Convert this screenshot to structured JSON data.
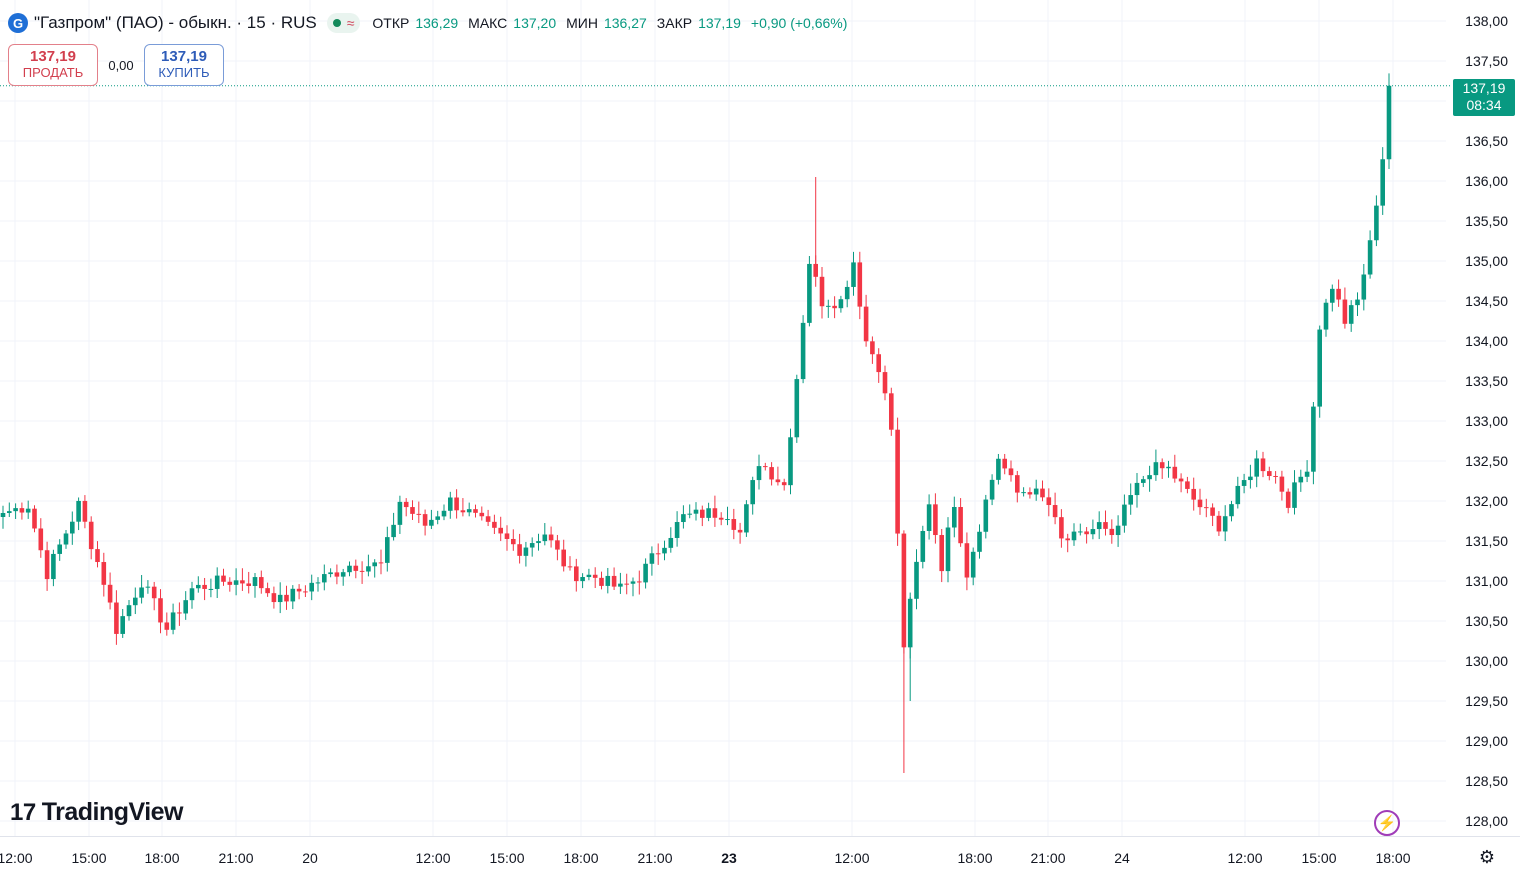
{
  "header": {
    "logo_letter": "G",
    "title": "\"Газпром\" (ПАО) - обыкн. · 15 · RUS",
    "status_wave": "≈",
    "ohlc": [
      {
        "label": "ОТКР",
        "value": "136,29"
      },
      {
        "label": "МАКС",
        "value": "137,20"
      },
      {
        "label": "МИН",
        "value": "136,27"
      },
      {
        "label": "ЗАКР",
        "value": "137,19"
      }
    ],
    "change": "+0,90 (+0,66%)"
  },
  "trade": {
    "sell_price": "137,19",
    "sell_label": "ПРОДАТЬ",
    "spread": "0,00",
    "buy_price": "137,19",
    "buy_label": "КУПИТЬ"
  },
  "last_price": {
    "price": "137,19",
    "countdown": "08:34"
  },
  "brand": {
    "name": "TradingView",
    "mark": "17"
  },
  "colors": {
    "up": "#089981",
    "down": "#f23645",
    "grid": "#f0f3fa",
    "accent": "#a03cb8"
  },
  "chart_data": {
    "type": "candlestick",
    "y_ticks": [
      "138,00",
      "137,50",
      "137,00",
      "136,50",
      "136,00",
      "135,50",
      "135,00",
      "134,50",
      "134,00",
      "133,50",
      "133,00",
      "132,50",
      "132,00",
      "131,50",
      "131,00",
      "130,50",
      "130,00",
      "129,50",
      "129,00",
      "128,50",
      "128,00"
    ],
    "ylim": [
      127.8,
      138.2
    ],
    "x_ticks": [
      {
        "label": "12:00",
        "bold": false
      },
      {
        "label": "15:00",
        "bold": false
      },
      {
        "label": "18:00",
        "bold": false
      },
      {
        "label": "21:00",
        "bold": false
      },
      {
        "label": "20",
        "bold": false
      },
      {
        "label": "12:00",
        "bold": false
      },
      {
        "label": "15:00",
        "bold": false
      },
      {
        "label": "18:00",
        "bold": false
      },
      {
        "label": "21:00",
        "bold": false
      },
      {
        "label": "23",
        "bold": true
      },
      {
        "label": "12:00",
        "bold": false
      },
      {
        "label": "18:00",
        "bold": false
      },
      {
        "label": "21:00",
        "bold": false
      },
      {
        "label": "24",
        "bold": false
      },
      {
        "label": "12:00",
        "bold": false
      },
      {
        "label": "15:00",
        "bold": false
      },
      {
        "label": "18:00",
        "bold": false
      }
    ],
    "last_price": 137.19,
    "keypoints": [
      {
        "i": 0,
        "p": 131.85
      },
      {
        "i": 4,
        "p": 131.95
      },
      {
        "i": 7,
        "p": 131.1
      },
      {
        "i": 12,
        "p": 131.95
      },
      {
        "i": 16,
        "p": 131.0
      },
      {
        "i": 18,
        "p": 130.4
      },
      {
        "i": 22,
        "p": 131.0
      },
      {
        "i": 26,
        "p": 130.4
      },
      {
        "i": 30,
        "p": 130.9
      },
      {
        "i": 35,
        "p": 131.0
      },
      {
        "i": 40,
        "p": 131.0
      },
      {
        "i": 44,
        "p": 130.75
      },
      {
        "i": 50,
        "p": 131.0
      },
      {
        "i": 55,
        "p": 131.2
      },
      {
        "i": 60,
        "p": 131.2
      },
      {
        "i": 63,
        "p": 132.0
      },
      {
        "i": 67,
        "p": 131.7
      },
      {
        "i": 71,
        "p": 132.0
      },
      {
        "i": 74,
        "p": 131.85
      },
      {
        "i": 78,
        "p": 131.6
      },
      {
        "i": 82,
        "p": 131.4
      },
      {
        "i": 86,
        "p": 131.6
      },
      {
        "i": 90,
        "p": 131.1
      },
      {
        "i": 94,
        "p": 131.05
      },
      {
        "i": 98,
        "p": 130.9
      },
      {
        "i": 101,
        "p": 131.05
      },
      {
        "i": 105,
        "p": 131.5
      },
      {
        "i": 108,
        "p": 131.8
      },
      {
        "i": 112,
        "p": 131.85
      },
      {
        "i": 115,
        "p": 131.85
      },
      {
        "i": 117,
        "p": 131.6
      },
      {
        "i": 120,
        "p": 132.5
      },
      {
        "i": 124,
        "p": 132.2
      },
      {
        "i": 126,
        "p": 133.55
      },
      {
        "i": 128,
        "p": 135.0
      },
      {
        "i": 130,
        "p": 134.5
      },
      {
        "i": 133,
        "p": 134.5
      },
      {
        "i": 135,
        "p": 135.0
      },
      {
        "i": 137,
        "p": 134.0
      },
      {
        "i": 139,
        "p": 133.7
      },
      {
        "i": 141,
        "p": 132.9
      },
      {
        "i": 143,
        "p": 130.2
      },
      {
        "i": 145,
        "p": 131.2
      },
      {
        "i": 147,
        "p": 132.0
      },
      {
        "i": 149,
        "p": 131.2
      },
      {
        "i": 151,
        "p": 132.0
      },
      {
        "i": 153,
        "p": 131.1
      },
      {
        "i": 156,
        "p": 132.0
      },
      {
        "i": 158,
        "p": 132.55
      },
      {
        "i": 161,
        "p": 132.1
      },
      {
        "i": 163,
        "p": 132.15
      },
      {
        "i": 166,
        "p": 131.95
      },
      {
        "i": 168,
        "p": 131.5
      },
      {
        "i": 171,
        "p": 131.55
      },
      {
        "i": 174,
        "p": 131.7
      },
      {
        "i": 176,
        "p": 131.5
      },
      {
        "i": 179,
        "p": 132.05
      },
      {
        "i": 182,
        "p": 132.4
      },
      {
        "i": 185,
        "p": 132.4
      },
      {
        "i": 188,
        "p": 132.1
      },
      {
        "i": 191,
        "p": 131.85
      },
      {
        "i": 193,
        "p": 131.7
      },
      {
        "i": 196,
        "p": 132.1
      },
      {
        "i": 199,
        "p": 132.5
      },
      {
        "i": 202,
        "p": 132.3
      },
      {
        "i": 204,
        "p": 132.0
      },
      {
        "i": 207,
        "p": 132.45
      },
      {
        "i": 208,
        "p": 133.2
      },
      {
        "i": 209,
        "p": 134.2
      },
      {
        "i": 211,
        "p": 134.7
      },
      {
        "i": 213,
        "p": 134.25
      },
      {
        "i": 215,
        "p": 134.5
      },
      {
        "i": 217,
        "p": 135.2
      },
      {
        "i": 219,
        "p": 136.3
      },
      {
        "i": 220,
        "p": 137.19
      }
    ]
  }
}
